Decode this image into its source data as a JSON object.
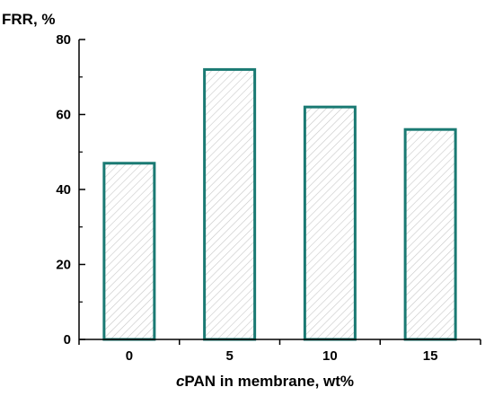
{
  "chart_data": {
    "type": "bar",
    "categories": [
      "0",
      "5",
      "10",
      "15"
    ],
    "values": [
      47,
      72,
      62,
      56
    ],
    "ylabel": "FRR, %",
    "xlabel_italic": "c",
    "xlabel_rest": "PAN in membrane, wt%",
    "ylim": [
      0,
      80
    ],
    "yticks": [
      "0",
      "20",
      "40",
      "60",
      "80"
    ],
    "grid": false,
    "bar_edge_color": "#1a7a73",
    "bar_hatch_color": "#c8c8c8",
    "axis_color": "#000000"
  }
}
